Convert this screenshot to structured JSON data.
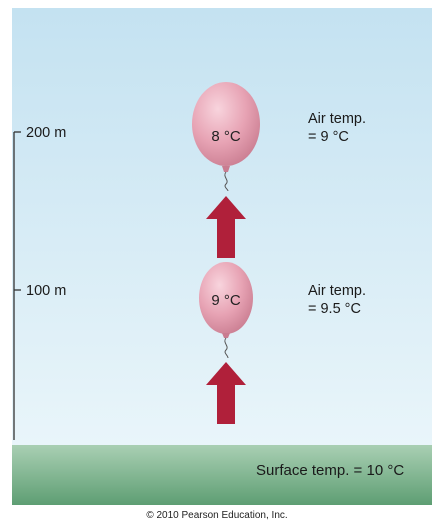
{
  "altitude_labels": [
    "200 m",
    "100 m"
  ],
  "balloons": [
    {
      "inner_temp": "8 °C",
      "air_temp_line1": "Air temp.",
      "air_temp_line2": "= 9 °C"
    },
    {
      "inner_temp": "9 °C",
      "air_temp_line1": "Air temp.",
      "air_temp_line2": "= 9.5 °C"
    }
  ],
  "surface_label": "Surface temp. = 10 °C",
  "copyright": "© 2010 Pearson Education, Inc.",
  "colors": {
    "sky_top": "#c4e2f1",
    "sky_bottom": "#e9f5fa",
    "ground_top": "#a9cfb3",
    "ground_bottom": "#5e9e73",
    "balloon": "#e7a3b4",
    "arrow": "#b0203a"
  }
}
